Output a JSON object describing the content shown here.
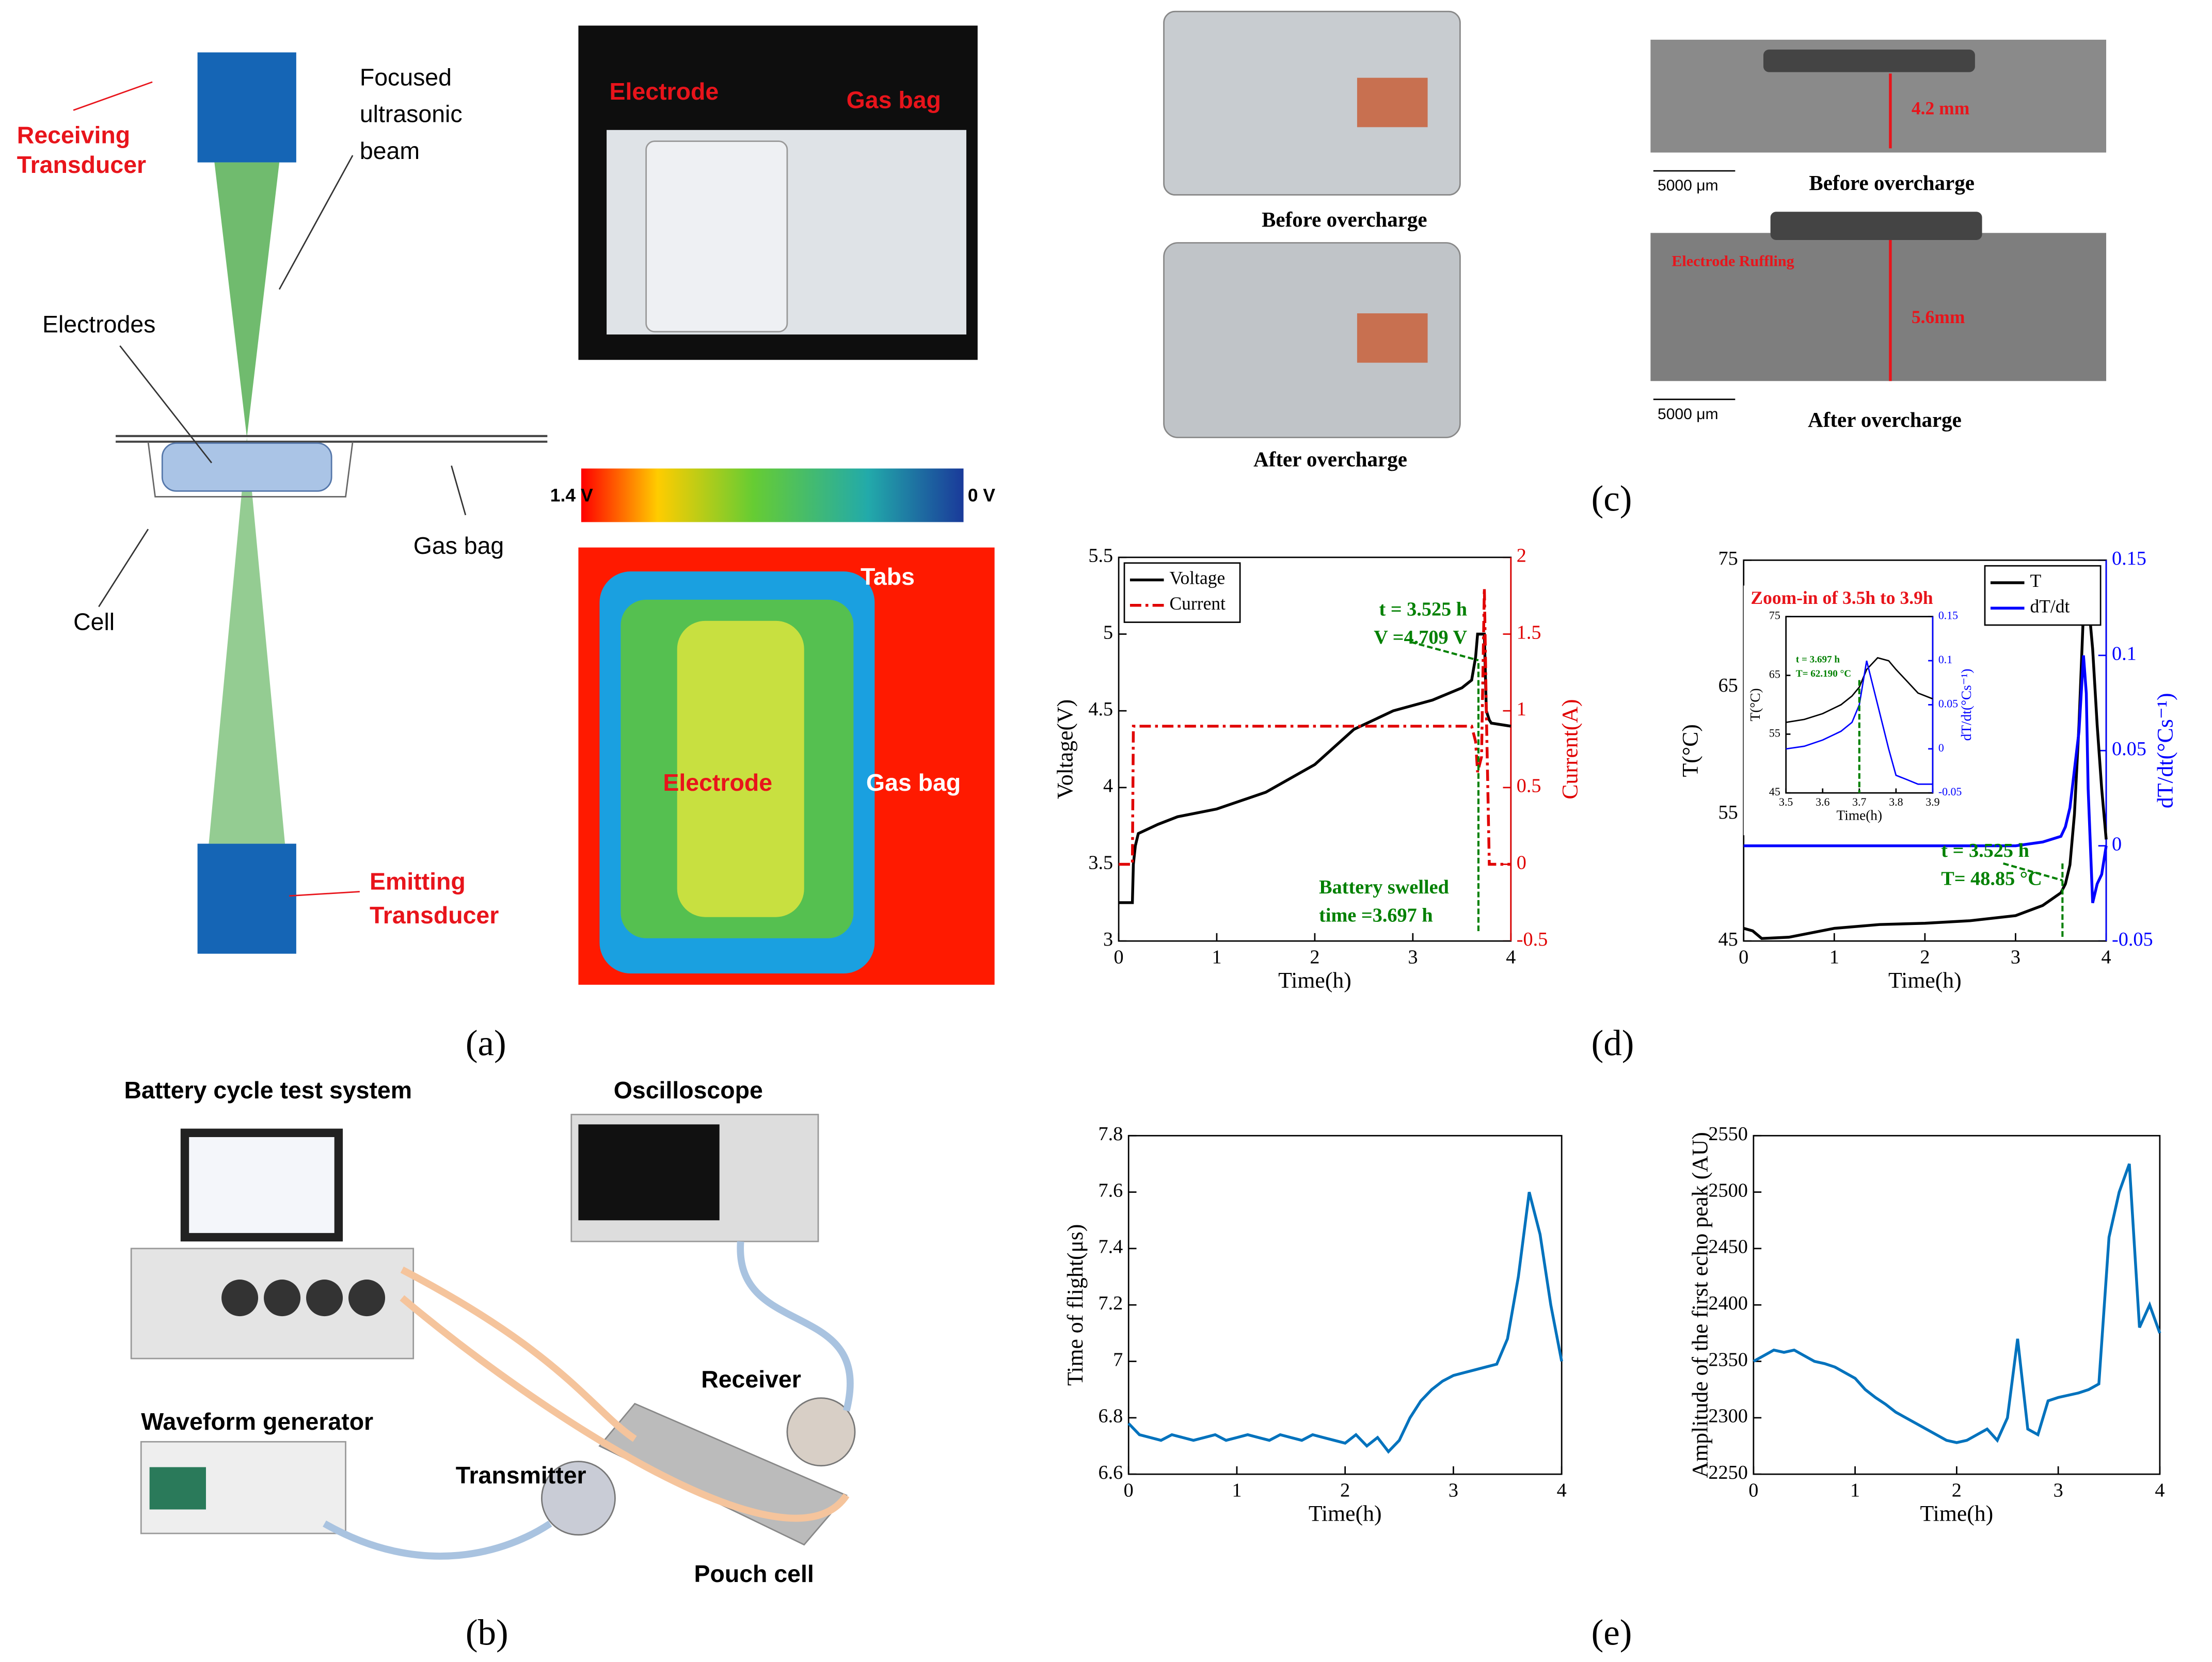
{
  "figure": {
    "panel_labels": [
      "(a)",
      "(b)",
      "(c)",
      "(d)",
      "(e)"
    ],
    "a": {
      "receiving": [
        "Receiving",
        "Transducer"
      ],
      "beam": [
        "Focused",
        "ultrasonic",
        "beam"
      ],
      "electrodes": "Electrodes",
      "gas_bag": "Gas bag",
      "cell": "Cell",
      "emitting": [
        "Emitting",
        "Transducer"
      ],
      "photo": {
        "electrode": "Electrode",
        "gas_bag": "Gas bag"
      },
      "colorbar": {
        "max": "1.4 V",
        "min": "0 V"
      },
      "map": {
        "tabs": "Tabs",
        "electrode": "Electrode",
        "gas_bag": "Gas bag"
      }
    },
    "b": {
      "cycler": "Battery cycle test system",
      "oscilloscope": "Oscilloscope",
      "generator": "Waveform generator",
      "transmitter": "Transmitter",
      "receiver": "Receiver",
      "pouch": "Pouch cell"
    },
    "c": {
      "photo_before": "Before overcharge",
      "photo_after": "After overcharge",
      "thickness_before": "4.2 mm",
      "thickness_after": "5.6mm",
      "scale_before": "5000 μm",
      "scale_after": "5000 μm",
      "ruffling": "Electrode Ruffling",
      "xray_before": "Before overcharge",
      "xray_after": "After overcharge"
    }
  },
  "chart_data": [
    {
      "type": "line",
      "xlabel": "Time(h)",
      "ylabel": "Voltage(V)",
      "y2label": "Current(A)",
      "x": [
        0,
        0.14,
        0.15,
        0.17,
        0.2,
        0.4,
        0.6,
        1,
        1.5,
        2,
        2.4,
        2.8,
        3.2,
        3.5,
        3.6,
        3.64,
        3.66,
        3.7,
        3.73,
        3.75,
        3.78,
        3.8,
        4
      ],
      "series": [
        {
          "name": "Voltage",
          "color": "#000000",
          "dash": "solid",
          "values": [
            3.25,
            3.25,
            3.5,
            3.62,
            3.7,
            3.76,
            3.81,
            3.86,
            3.97,
            4.15,
            4.38,
            4.5,
            4.57,
            4.65,
            4.7,
            4.85,
            5.0,
            5.0,
            5.0,
            4.5,
            4.44,
            4.42,
            4.4
          ]
        },
        {
          "name": "Current",
          "color": "#e00000",
          "dash": "dashdot",
          "axis": "y2",
          "values": [
            0,
            0,
            0.9,
            0.9,
            0.9,
            0.9,
            0.9,
            0.9,
            0.9,
            0.9,
            0.9,
            0.9,
            0.9,
            0.9,
            0.9,
            0.8,
            0.6,
            0.7,
            1.8,
            1.0,
            0,
            0,
            0
          ]
        }
      ],
      "xlim": [
        0,
        4
      ],
      "xticks": [
        0,
        1,
        2,
        3,
        4
      ],
      "ylim": [
        3,
        5.5
      ],
      "yticks": [
        3,
        3.5,
        4,
        4.5,
        5,
        5.5
      ],
      "y2lim": [
        -0.5,
        2
      ],
      "y2ticks": [
        -0.5,
        0,
        0.5,
        1,
        1.5,
        2
      ],
      "legend": "upper left",
      "annotations": [
        "t = 3.525 h",
        "V =4.709 V",
        "Battery swelled",
        "time =3.697 h"
      ]
    },
    {
      "type": "line",
      "xlabel": "Time(h)",
      "ylabel": "T(°C)",
      "y2label": "dT/dt(°Cs⁻¹)",
      "x": [
        0,
        0.1,
        0.2,
        0.5,
        1,
        1.5,
        2,
        2.5,
        3,
        3.3,
        3.5,
        3.55,
        3.6,
        3.65,
        3.7,
        3.75,
        3.78,
        3.8,
        3.85,
        3.9,
        3.95,
        4
      ],
      "series": [
        {
          "name": "T",
          "color": "#000000",
          "dash": "solid",
          "values": [
            46,
            45.8,
            45.2,
            45.3,
            46,
            46.3,
            46.4,
            46.6,
            47,
            47.8,
            48.8,
            49.5,
            51,
            55,
            62,
            71,
            74,
            72,
            68,
            62,
            57,
            53
          ]
        },
        {
          "name": "dT/dt",
          "color": "#0000ff",
          "dash": "solid",
          "axis": "y2",
          "values": [
            0,
            0,
            0,
            0,
            0,
            0,
            0,
            0,
            0,
            0.002,
            0.005,
            0.01,
            0.02,
            0.04,
            0.06,
            0.1,
            0.08,
            0.03,
            -0.03,
            -0.02,
            -0.015,
            0
          ]
        }
      ],
      "xlim": [
        0,
        4
      ],
      "xticks": [
        0,
        1,
        2,
        3,
        4
      ],
      "ylim": [
        45,
        75
      ],
      "yticks": [
        45,
        55,
        65,
        75
      ],
      "y2lim": [
        -0.05,
        0.15
      ],
      "y2ticks": [
        -0.05,
        0,
        0.05,
        0.1,
        0.15
      ],
      "legend": "upper right",
      "annotations": [
        "t = 3.525 h",
        "T= 48.85 °C"
      ]
    },
    {
      "type": "line",
      "title": "Zoom-in  of 3.5h to 3.9h",
      "xlabel": "Time(h)",
      "ylabel": "T(°C)",
      "y2label": "dT/dt(°Cs⁻¹)",
      "x": [
        3.5,
        3.55,
        3.6,
        3.65,
        3.68,
        3.7,
        3.72,
        3.75,
        3.78,
        3.8,
        3.83,
        3.86,
        3.9
      ],
      "series": [
        {
          "name": "T",
          "color": "#000000",
          "dash": "solid",
          "values": [
            57,
            57.5,
            58.5,
            60,
            61.5,
            63,
            66,
            68,
            67.5,
            66,
            64,
            62,
            61
          ]
        },
        {
          "name": "dT/dt",
          "color": "#0000ff",
          "dash": "solid",
          "axis": "y2",
          "values": [
            0,
            0.003,
            0.01,
            0.02,
            0.03,
            0.05,
            0.1,
            0.05,
            0,
            -0.03,
            -0.035,
            -0.04,
            -0.04
          ]
        }
      ],
      "xlim": [
        3.5,
        3.9
      ],
      "xticks": [
        3.5,
        3.6,
        3.7,
        3.8,
        3.9
      ],
      "ylim": [
        45,
        75
      ],
      "yticks": [
        45,
        55,
        65,
        75
      ],
      "y2lim": [
        -0.05,
        0.15
      ],
      "y2ticks": [
        -0.05,
        0,
        0.05,
        0.1,
        0.15
      ],
      "annotations": [
        "t = 3.697 h",
        "T= 62.190 °C"
      ]
    },
    {
      "type": "line",
      "xlabel": "Time(h)",
      "ylabel": "Time of flight(μs)",
      "x": [
        0,
        0.1,
        0.2,
        0.3,
        0.4,
        0.5,
        0.6,
        0.7,
        0.8,
        0.9,
        1,
        1.1,
        1.2,
        1.3,
        1.4,
        1.5,
        1.6,
        1.7,
        1.8,
        1.9,
        2,
        2.1,
        2.2,
        2.3,
        2.4,
        2.5,
        2.6,
        2.7,
        2.8,
        2.9,
        3,
        3.1,
        3.2,
        3.3,
        3.4,
        3.5,
        3.6,
        3.7,
        3.8,
        3.9,
        4
      ],
      "series": [
        {
          "name": "Time of flight",
          "color": "#0072bd",
          "dash": "solid",
          "values": [
            6.78,
            6.74,
            6.73,
            6.72,
            6.74,
            6.73,
            6.72,
            6.73,
            6.74,
            6.72,
            6.73,
            6.74,
            6.73,
            6.72,
            6.74,
            6.73,
            6.72,
            6.74,
            6.73,
            6.72,
            6.71,
            6.74,
            6.7,
            6.73,
            6.68,
            6.72,
            6.8,
            6.86,
            6.9,
            6.93,
            6.95,
            6.96,
            6.97,
            6.98,
            6.99,
            7.08,
            7.3,
            7.6,
            7.45,
            7.2,
            7.0
          ]
        }
      ],
      "xlim": [
        0,
        4
      ],
      "xticks": [
        0,
        1,
        2,
        3,
        4
      ],
      "ylim": [
        6.6,
        7.8
      ],
      "yticks": [
        6.6,
        6.8,
        7,
        7.2,
        7.4,
        7.6,
        7.8
      ]
    },
    {
      "type": "line",
      "xlabel": "Time(h)",
      "ylabel": "Amplitude  of the first echo peak (AU)",
      "x": [
        0,
        0.1,
        0.2,
        0.3,
        0.4,
        0.5,
        0.6,
        0.7,
        0.8,
        0.9,
        1,
        1.1,
        1.2,
        1.3,
        1.4,
        1.5,
        1.6,
        1.7,
        1.8,
        1.9,
        2,
        2.1,
        2.2,
        2.3,
        2.4,
        2.5,
        2.6,
        2.7,
        2.8,
        2.9,
        3,
        3.1,
        3.2,
        3.3,
        3.4,
        3.5,
        3.6,
        3.7,
        3.8,
        3.9,
        4
      ],
      "series": [
        {
          "name": "Amplitude",
          "color": "#0072bd",
          "dash": "solid",
          "values": [
            2350,
            2355,
            2360,
            2358,
            2360,
            2355,
            2350,
            2348,
            2345,
            2340,
            2335,
            2325,
            2318,
            2312,
            2305,
            2300,
            2295,
            2290,
            2285,
            2280,
            2278,
            2280,
            2285,
            2290,
            2280,
            2300,
            2370,
            2290,
            2285,
            2315,
            2318,
            2320,
            2322,
            2325,
            2330,
            2460,
            2500,
            2525,
            2380,
            2400,
            2375
          ]
        }
      ],
      "xlim": [
        0,
        4
      ],
      "xticks": [
        0,
        1,
        2,
        3,
        4
      ],
      "ylim": [
        2250,
        2550
      ],
      "yticks": [
        2250,
        2300,
        2350,
        2400,
        2450,
        2500,
        2550
      ]
    }
  ]
}
